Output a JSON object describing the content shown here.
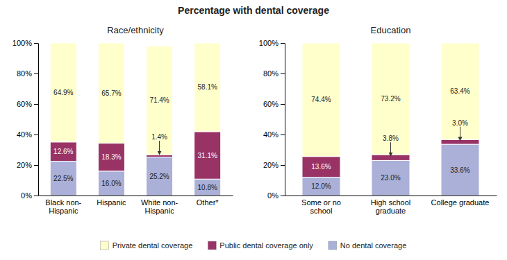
{
  "title": "Percentage with dental coverage",
  "chart_data": [
    {
      "type": "bar",
      "stacked": true,
      "data_labels": true,
      "legend": "bottom",
      "title": "Race/ethnicity",
      "categories": [
        "Black non-\nHispanic",
        "Hispanic",
        "White non-\nHispanic",
        "Other*"
      ],
      "series": [
        {
          "name": "No dental coverage",
          "color": "#aab0d8",
          "values": [
            22.5,
            16.0,
            25.2,
            10.8
          ],
          "value_labels": [
            "22.5%",
            "16.0%",
            "25.2%",
            "10.8%"
          ]
        },
        {
          "name": "Public dental coverage only",
          "color": "#993366",
          "values": [
            12.6,
            18.3,
            1.4,
            31.1
          ],
          "value_labels": [
            "12.6%",
            "18.3%",
            "1.4%",
            "31.1%"
          ]
        },
        {
          "name": "Private dental coverage",
          "color": "#ffffcc",
          "values": [
            64.9,
            65.7,
            71.4,
            58.1
          ],
          "value_labels": [
            "64.9%",
            "65.7%",
            "71.4%",
            "58.1%"
          ]
        }
      ],
      "ylim": [
        0,
        100
      ],
      "yticks": [
        {
          "value": 0,
          "label": "0%"
        },
        {
          "value": 20,
          "label": "20%"
        },
        {
          "value": 40,
          "label": "40%"
        },
        {
          "value": 60,
          "label": "60%"
        },
        {
          "value": 80,
          "label": "80%"
        },
        {
          "value": 100,
          "label": "100%"
        }
      ]
    },
    {
      "type": "bar",
      "stacked": true,
      "data_labels": true,
      "title": "Education",
      "categories": [
        "Some or no\nschool",
        "High school\ngraduate",
        "College graduate"
      ],
      "series": [
        {
          "color": "#aab0d8",
          "values": [
            12.0,
            23.0,
            33.6
          ],
          "value_labels": [
            "12.0%",
            "23.0%",
            "33.6%"
          ]
        },
        {
          "color": "#993366",
          "values": [
            13.6,
            3.8,
            3.0
          ],
          "value_labels": [
            "13.6%",
            "3.8%",
            "3.0%"
          ]
        },
        {
          "color": "#ffffcc",
          "values": [
            74.4,
            73.2,
            63.4
          ],
          "value_labels": [
            "74.4%",
            "73.2%",
            "63.4%"
          ]
        }
      ],
      "ylim": [
        0,
        100
      ],
      "yticks": [
        {
          "value": 0,
          "label": "0%"
        },
        {
          "value": 20,
          "label": "20%"
        },
        {
          "value": 40,
          "label": "40%"
        },
        {
          "value": 60,
          "label": "60%"
        },
        {
          "value": 80,
          "label": "80%"
        },
        {
          "value": 100,
          "label": "100%"
        }
      ]
    }
  ]
}
